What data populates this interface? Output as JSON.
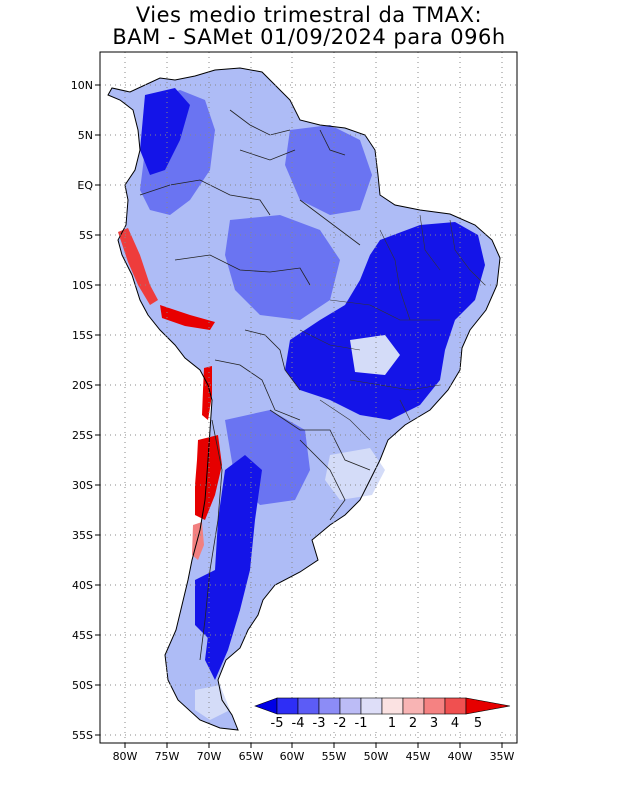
{
  "title": {
    "line1": "Vies medio trimestral da TMAX:",
    "line2": "BAM - SAMet 01/09/2024  para 096h"
  },
  "map": {
    "lon_range": [
      -83,
      -34
    ],
    "lat_range": [
      -56,
      13
    ],
    "lat_ticks": [
      {
        "value": 10,
        "label": "10N"
      },
      {
        "value": 5,
        "label": "5N"
      },
      {
        "value": 0,
        "label": "EQ"
      },
      {
        "value": -5,
        "label": "5S"
      },
      {
        "value": -10,
        "label": "10S"
      },
      {
        "value": -15,
        "label": "15S"
      },
      {
        "value": -20,
        "label": "20S"
      },
      {
        "value": -25,
        "label": "25S"
      },
      {
        "value": -30,
        "label": "30S"
      },
      {
        "value": -35,
        "label": "35S"
      },
      {
        "value": -40,
        "label": "40S"
      },
      {
        "value": -45,
        "label": "45S"
      },
      {
        "value": -50,
        "label": "50S"
      },
      {
        "value": -55,
        "label": "55S"
      }
    ],
    "lon_ticks": [
      {
        "value": -80,
        "label": "80W"
      },
      {
        "value": -75,
        "label": "75W"
      },
      {
        "value": -70,
        "label": "70W"
      },
      {
        "value": -65,
        "label": "65W"
      },
      {
        "value": -60,
        "label": "60W"
      },
      {
        "value": -55,
        "label": "55W"
      },
      {
        "value": -50,
        "label": "50W"
      },
      {
        "value": -45,
        "label": "45W"
      },
      {
        "value": -40,
        "label": "40W"
      },
      {
        "value": -35,
        "label": "35W"
      }
    ],
    "grid": true,
    "grid_style": "dotted"
  },
  "colorbar": {
    "labels": [
      "-5",
      "-4",
      "-3",
      "-2",
      "-1",
      "1",
      "2",
      "3",
      "4",
      "5"
    ],
    "colors": [
      "#0000e6",
      "#2e2ef6",
      "#5c5cf6",
      "#8c8cf6",
      "#bcbcf6",
      "#dedef8",
      "#fbe2e2",
      "#f8b4b4",
      "#f58282",
      "#f05050",
      "#e60000"
    ]
  },
  "colors": {
    "strong_cold": "#1010e8",
    "medium_cold": "#5a64f2",
    "light_cold": "#b8c4f8",
    "warm": "#ee4040",
    "strong_warm": "#e00000"
  }
}
